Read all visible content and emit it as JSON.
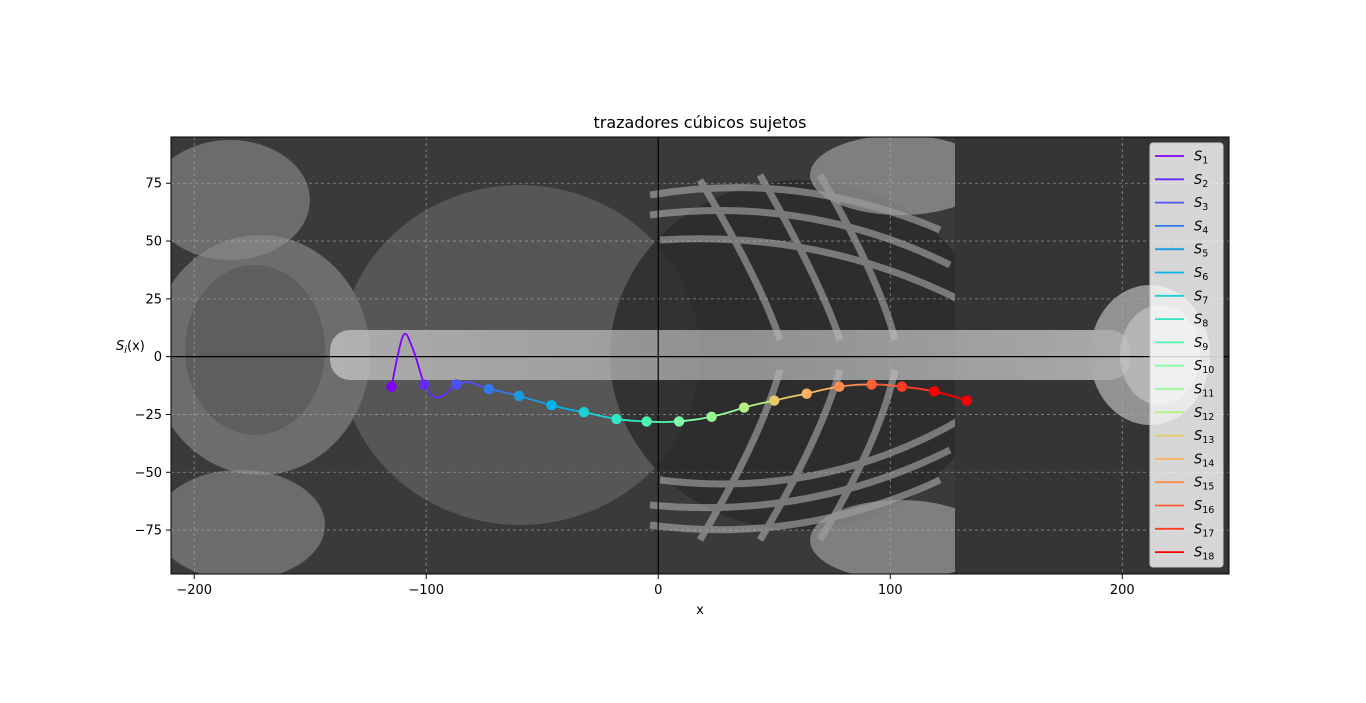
{
  "chart_data": {
    "type": "line",
    "title": "trazadores cúbicos sujetos",
    "xlabel": "x",
    "ylabel_main": "S",
    "ylabel_sub": "i",
    "ylabel_tail": "(x)",
    "xlim": [
      -210,
      246
    ],
    "ylim": [
      -94,
      95
    ],
    "x_ticks": [
      -200,
      -100,
      0,
      100,
      200
    ],
    "x_tick_labels": [
      "−200",
      "−100",
      "0",
      "100",
      "200"
    ],
    "y_ticks": [
      75,
      50,
      25,
      0,
      -25,
      -50,
      -75
    ],
    "y_tick_labels": [
      "75",
      "50",
      "25",
      "0",
      "−25",
      "−50",
      "−75"
    ],
    "grid": true,
    "background": "grayscale x-ray image (torso)",
    "legend_position": "top-right",
    "knots": {
      "x": [
        -115,
        -101,
        -87,
        -73,
        -60,
        -46,
        -32,
        -18,
        -5,
        9,
        23,
        37,
        50,
        64,
        78,
        92,
        105,
        119,
        133
      ],
      "y": [
        -13,
        -12,
        -12,
        -14,
        -17,
        -21,
        -24,
        -27,
        -28,
        -28,
        -26,
        -22,
        -19,
        -16,
        -13,
        -12,
        -13,
        -15,
        -19
      ]
    },
    "series": [
      {
        "name_main": "S",
        "name_sub": "1",
        "color": "#8000ff",
        "x": [
          -115,
          -110,
          -106,
          -101
        ],
        "y": [
          -13,
          9,
          4,
          -12
        ]
      },
      {
        "name_main": "S",
        "name_sub": "2",
        "color": "#6629fe",
        "x": [
          -101,
          -98,
          -94,
          -90,
          -87
        ],
        "y": [
          -12,
          -16.5,
          -17.5,
          -14.5,
          -12
        ]
      },
      {
        "name_main": "S",
        "name_sub": "3",
        "color": "#4d52f8",
        "x": [
          -87,
          -82,
          -77,
          -73
        ],
        "y": [
          -12,
          -11,
          -12.5,
          -14
        ]
      },
      {
        "name_main": "S",
        "name_sub": "4",
        "color": "#3378ed",
        "x": [
          -73,
          -66,
          -60
        ],
        "y": [
          -14,
          -15.5,
          -17
        ]
      },
      {
        "name_main": "S",
        "name_sub": "5",
        "color": "#1a9bdf",
        "x": [
          -60,
          -53,
          -46
        ],
        "y": [
          -17,
          -19,
          -21
        ]
      },
      {
        "name_main": "S",
        "name_sub": "6",
        "color": "#00b5eb",
        "x": [
          -46,
          -39,
          -32
        ],
        "y": [
          -21,
          -22.7,
          -24
        ]
      },
      {
        "name_main": "S",
        "name_sub": "7",
        "color": "#1ad1d4",
        "x": [
          -32,
          -25,
          -18
        ],
        "y": [
          -24,
          -25.6,
          -27
        ]
      },
      {
        "name_main": "S",
        "name_sub": "8",
        "color": "#33e6c3",
        "x": [
          -18,
          -11,
          -5
        ],
        "y": [
          -27,
          -27.7,
          -28
        ]
      },
      {
        "name_main": "S",
        "name_sub": "9",
        "color": "#4df3ae",
        "x": [
          -5,
          2,
          9
        ],
        "y": [
          -28,
          -28.3,
          -28
        ]
      },
      {
        "name_main": "S",
        "name_sub": "10",
        "color": "#80ffa6",
        "x": [
          9,
          16,
          23
        ],
        "y": [
          -28,
          -27.2,
          -26
        ]
      },
      {
        "name_main": "S",
        "name_sub": "11",
        "color": "#99fa93",
        "x": [
          23,
          30,
          37
        ],
        "y": [
          -26,
          -24.2,
          -22
        ]
      },
      {
        "name_main": "S",
        "name_sub": "12",
        "color": "#b3f27e",
        "x": [
          37,
          43,
          50
        ],
        "y": [
          -22,
          -20.5,
          -19
        ]
      },
      {
        "name_main": "S",
        "name_sub": "13",
        "color": "#e6cb69",
        "x": [
          50,
          57,
          64
        ],
        "y": [
          -19,
          -17.4,
          -16
        ]
      },
      {
        "name_main": "S",
        "name_sub": "14",
        "color": "#ffb360",
        "x": [
          64,
          71,
          78
        ],
        "y": [
          -16,
          -14.3,
          -13
        ]
      },
      {
        "name_main": "S",
        "name_sub": "15",
        "color": "#ff8c4f",
        "x": [
          78,
          85,
          92
        ],
        "y": [
          -13,
          -12.2,
          -12
        ]
      },
      {
        "name_main": "S",
        "name_sub": "16",
        "color": "#ff6237",
        "x": [
          92,
          98,
          105
        ],
        "y": [
          -12,
          -12.2,
          -13
        ]
      },
      {
        "name_main": "S",
        "name_sub": "17",
        "color": "#ff3d25",
        "x": [
          105,
          112,
          119
        ],
        "y": [
          -13,
          -13.8,
          -15
        ]
      },
      {
        "name_main": "S",
        "name_sub": "18",
        "color": "#ff0000",
        "x": [
          119,
          126,
          133
        ],
        "y": [
          -15,
          -16.8,
          -19
        ]
      }
    ]
  }
}
